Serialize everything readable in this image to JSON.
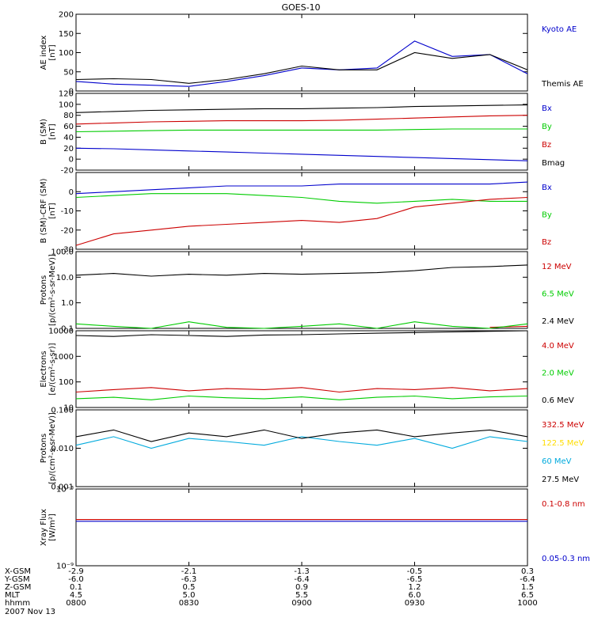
{
  "title": "GOES-10",
  "date": "2007 Nov 13",
  "colors": {
    "black": "#000000",
    "blue": "#0000cc",
    "red": "#cc0000",
    "green": "#00cc00",
    "cyan": "#00aadd",
    "yellow": "#ffdd00"
  },
  "chart_data": [
    {
      "type": "line",
      "ylabel": [
        "AE index",
        "[nT]"
      ],
      "ylim": [
        0,
        200
      ],
      "yticks": [
        "0",
        "50",
        "100",
        "150",
        "200"
      ],
      "tick_values": [
        0,
        50,
        100,
        150,
        200
      ],
      "x": [
        0,
        10,
        20,
        30,
        40,
        50,
        60,
        70,
        80,
        90,
        100,
        110,
        120
      ],
      "series": [
        {
          "name": "Kyoto AE",
          "color": "blue",
          "values": [
            25,
            18,
            15,
            12,
            25,
            40,
            60,
            55,
            60,
            130,
            90,
            95,
            45
          ]
        },
        {
          "name": "Themis AE",
          "color": "black",
          "values": [
            30,
            32,
            30,
            20,
            30,
            45,
            65,
            55,
            55,
            100,
            85,
            95,
            55
          ]
        }
      ]
    },
    {
      "type": "line",
      "ylabel": [
        "B (SM)",
        "[nT]"
      ],
      "ylim": [
        -20,
        120
      ],
      "yticks": [
        "-20",
        "0",
        "20",
        "40",
        "60",
        "80",
        "100",
        "120"
      ],
      "tick_values": [
        -20,
        0,
        20,
        40,
        60,
        80,
        100,
        120
      ],
      "x": [
        0,
        10,
        20,
        30,
        40,
        50,
        60,
        70,
        80,
        90,
        100,
        110,
        120
      ],
      "series": [
        {
          "name": "Bx",
          "color": "blue",
          "values": [
            20,
            19,
            17,
            15,
            13,
            11,
            9,
            7,
            5,
            3,
            1,
            -1,
            -3
          ]
        },
        {
          "name": "By",
          "color": "green",
          "values": [
            50,
            51,
            52,
            53,
            53,
            53,
            53,
            53,
            53,
            54,
            55,
            55,
            55
          ]
        },
        {
          "name": "Bz",
          "color": "red",
          "values": [
            64,
            66,
            68,
            69,
            70,
            70,
            70,
            71,
            73,
            75,
            77,
            79,
            80
          ]
        },
        {
          "name": "Bmag",
          "color": "black",
          "values": [
            85,
            87,
            89,
            90,
            91,
            92,
            92,
            93,
            94,
            96,
            97,
            98,
            99
          ]
        }
      ]
    },
    {
      "type": "line",
      "ylabel": [
        "B (SM)-CRF (SM)",
        "[nT]"
      ],
      "ylim": [
        -30,
        10
      ],
      "yticks": [
        "-30",
        "-20",
        "-10",
        "0"
      ],
      "tick_values": [
        -30,
        -20,
        -10,
        0
      ],
      "x": [
        0,
        10,
        20,
        30,
        40,
        50,
        60,
        70,
        80,
        90,
        100,
        110,
        120
      ],
      "series": [
        {
          "name": "Bx",
          "color": "blue",
          "values": [
            -1,
            0,
            1,
            2,
            3,
            3,
            3,
            4,
            4,
            4,
            4,
            4,
            5
          ]
        },
        {
          "name": "By",
          "color": "green",
          "values": [
            -3,
            -2,
            -1,
            -1,
            -1,
            -2,
            -3,
            -5,
            -6,
            -5,
            -4,
            -5,
            -5
          ]
        },
        {
          "name": "Bz",
          "color": "red",
          "values": [
            -28,
            -22,
            -20,
            -18,
            -17,
            -16,
            -15,
            -16,
            -14,
            -8,
            -6,
            -4,
            -3
          ]
        }
      ]
    },
    {
      "type": "line",
      "scale": "log",
      "ylabel": [
        "Protons",
        "[p/(cm²-s-sr-MeV)]"
      ],
      "ylim": [
        0.1,
        100
      ],
      "yticks": [
        "0.1",
        "1.0",
        "10.0",
        "100.0"
      ],
      "tick_values": [
        0.1,
        1,
        10,
        100
      ],
      "x": [
        0,
        10,
        20,
        30,
        40,
        50,
        60,
        70,
        80,
        90,
        100,
        110,
        120
      ],
      "series": [
        {
          "name": "12 MeV",
          "color": "red",
          "values": [
            null,
            null,
            null,
            null,
            null,
            null,
            0.12,
            null,
            null,
            null,
            null,
            0.11,
            0.12
          ]
        },
        {
          "name": "6.5 MeV",
          "color": "green",
          "values": [
            0.15,
            0.12,
            0.1,
            0.18,
            0.11,
            0.1,
            0.12,
            0.15,
            0.1,
            0.18,
            0.12,
            0.1,
            0.15
          ]
        },
        {
          "name": "2.4 MeV",
          "color": "black",
          "values": [
            12,
            14,
            11,
            13,
            12,
            14,
            13,
            14,
            15,
            18,
            24,
            26,
            30
          ]
        }
      ]
    },
    {
      "type": "line",
      "scale": "log",
      "ylabel": [
        "Electrons",
        "[e/(cm²-s-sr)]"
      ],
      "ylim": [
        10,
        10000
      ],
      "yticks": [
        "10",
        "100",
        "1000",
        "10000"
      ],
      "tick_values": [
        10,
        100,
        1000,
        10000
      ],
      "x": [
        0,
        10,
        20,
        30,
        40,
        50,
        60,
        70,
        80,
        90,
        100,
        110,
        120
      ],
      "series": [
        {
          "name": "4.0 MeV",
          "color": "red",
          "values": [
            40,
            50,
            60,
            45,
            55,
            50,
            60,
            40,
            55,
            50,
            60,
            45,
            55
          ]
        },
        {
          "name": "2.0 MeV",
          "color": "green",
          "values": [
            22,
            25,
            20,
            28,
            24,
            22,
            26,
            20,
            25,
            28,
            22,
            26,
            28
          ]
        },
        {
          "name": "0.6 MeV",
          "color": "black",
          "values": [
            6500,
            6000,
            7000,
            6500,
            6000,
            6800,
            7000,
            7500,
            8000,
            8500,
            9000,
            9500,
            10000
          ]
        }
      ]
    },
    {
      "type": "line",
      "scale": "log",
      "ylabel": [
        "Protons",
        "[p/(cm²-s-sr-MeV)]"
      ],
      "ylim": [
        0.001,
        0.1
      ],
      "yticks": [
        "0.001",
        "0.010",
        "0.100"
      ],
      "tick_values": [
        0.001,
        0.01,
        0.1
      ],
      "x": [
        0,
        10,
        20,
        30,
        40,
        50,
        60,
        70,
        80,
        90,
        100,
        110,
        120
      ],
      "series": [
        {
          "name": "332.5 MeV",
          "color": "red",
          "values": [
            null,
            null,
            null,
            null,
            null,
            null,
            null,
            null,
            null,
            null,
            null,
            null,
            null
          ]
        },
        {
          "name": "122.5 MeV",
          "color": "yellow",
          "values": [
            null,
            null,
            null,
            null,
            null,
            null,
            null,
            null,
            null,
            null,
            null,
            null,
            null
          ]
        },
        {
          "name": "60 MeV",
          "color": "cyan",
          "values": [
            0.012,
            0.02,
            0.01,
            0.018,
            0.015,
            0.012,
            0.02,
            0.015,
            0.012,
            0.018,
            0.01,
            0.02,
            0.015
          ]
        },
        {
          "name": "27.5 MeV",
          "color": "black",
          "values": [
            0.02,
            0.03,
            0.015,
            0.025,
            0.02,
            0.03,
            0.018,
            0.025,
            0.03,
            0.02,
            0.025,
            0.03,
            0.02
          ]
        }
      ]
    },
    {
      "type": "line",
      "scale": "log",
      "ylabel": [
        "Xray Flux",
        "[W/m²]"
      ],
      "ylim": [
        1e-09,
        1e-08
      ],
      "yticks": [
        "10⁻⁹",
        "10⁻⁸"
      ],
      "tick_values": [
        1e-09,
        1e-08
      ],
      "x": [
        0,
        120
      ],
      "series": [
        {
          "name": "0.1-0.8 nm",
          "color": "red",
          "values": [
            4e-09,
            4e-09
          ]
        },
        {
          "name": "0.05-0.3 nm",
          "color": "blue",
          "values": [
            3.8e-09,
            3.8e-09
          ]
        }
      ]
    }
  ],
  "x_axis": {
    "xlim": [
      0,
      120
    ],
    "tick_x": [
      0,
      30,
      60,
      90,
      120
    ],
    "rows": [
      {
        "label": "X-GSM",
        "values": [
          "-2.9",
          "-2.1",
          "-1.3",
          "-0.5",
          "0.3"
        ]
      },
      {
        "label": "Y-GSM",
        "values": [
          "-6.0",
          "-6.3",
          "-6.4",
          "-6.5",
          "-6.4"
        ]
      },
      {
        "label": "Z-GSM",
        "values": [
          "0.1",
          "0.5",
          "0.9",
          "1.2",
          "1.5"
        ]
      },
      {
        "label": "MLT",
        "values": [
          "4.5",
          "5.0",
          "5.5",
          "6.0",
          "6.5"
        ]
      },
      {
        "label": "hhmm",
        "values": [
          "0800",
          "0830",
          "0900",
          "0930",
          "1000"
        ]
      }
    ]
  }
}
